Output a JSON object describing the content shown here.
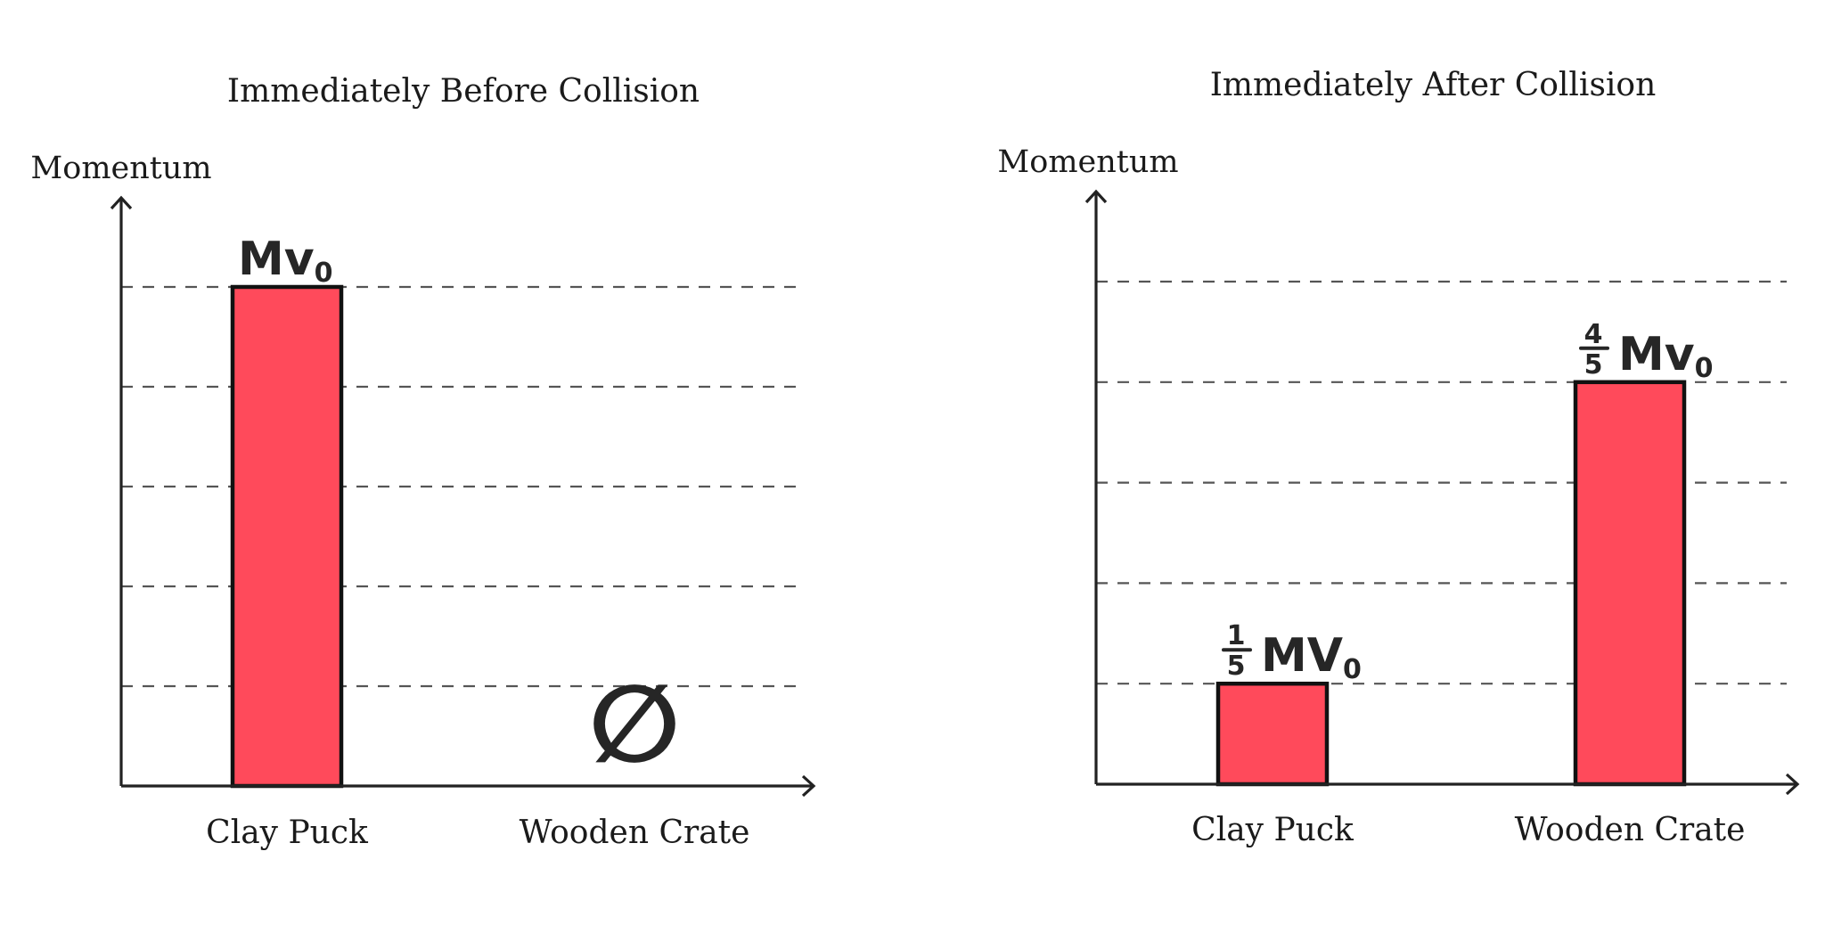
{
  "chart_data": [
    {
      "type": "bar",
      "title": "Immediately Before Collision",
      "ylabel": "Momentum",
      "xlabel": "",
      "categories": [
        "Clay Puck",
        "Wooden Crate"
      ],
      "values": [
        5,
        0
      ],
      "value_labels": [
        {
          "prefix": "",
          "text": "Mv",
          "subscript": "0"
        },
        {
          "prefix": "",
          "text": "∅",
          "subscript": ""
        }
      ],
      "ylim": [
        0,
        5
      ],
      "grid": true,
      "grid_style": "dashed",
      "bar_color": "#ff4a5b"
    },
    {
      "type": "bar",
      "title": "Immediately After Collision",
      "ylabel": "Momentum",
      "xlabel": "",
      "categories": [
        "Clay Puck",
        "Wooden Crate"
      ],
      "values": [
        1,
        4
      ],
      "value_labels": [
        {
          "num": "1",
          "den": "5",
          "text": "MV",
          "subscript": "0"
        },
        {
          "num": "4",
          "den": "5",
          "text": "Mv",
          "subscript": "0"
        }
      ],
      "ylim": [
        0,
        5
      ],
      "grid": true,
      "grid_style": "dashed",
      "bar_color": "#ff4a5b"
    }
  ]
}
